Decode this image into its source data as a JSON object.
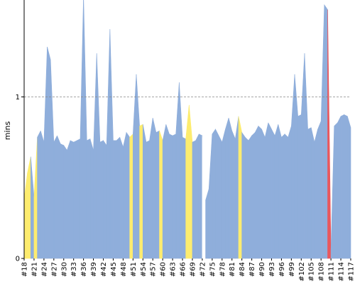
{
  "chart_data": {
    "type": "area",
    "title": "",
    "xlabel": "",
    "ylabel": "mins",
    "ylim": [
      0,
      1.6
    ],
    "y_ticks": [
      0,
      1
    ],
    "reference_line": {
      "y": 1,
      "style": "dashed"
    },
    "grid": false,
    "x_tick_labels": [
      "#18",
      "#21",
      "#24",
      "#27",
      "#30",
      "#33",
      "#36",
      "#39",
      "#42",
      "#45",
      "#48",
      "#51",
      "#54",
      "#57",
      "#60",
      "#63",
      "#66",
      "#69",
      "#72",
      "#75",
      "#78",
      "#81",
      "#84",
      "#87",
      "#90",
      "#93",
      "#96",
      "#99",
      "#102",
      "#105",
      "#108",
      "#111",
      "#114",
      "#117"
    ],
    "x": [
      18,
      19,
      20,
      21,
      22,
      23,
      24,
      25,
      26,
      27,
      28,
      29,
      30,
      31,
      32,
      33,
      34,
      35,
      36,
      37,
      38,
      39,
      40,
      41,
      42,
      43,
      44,
      45,
      46,
      47,
      48,
      49,
      50,
      51,
      52,
      53,
      54,
      55,
      56,
      57,
      58,
      59,
      60,
      61,
      62,
      63,
      64,
      65,
      66,
      67,
      68,
      69,
      70,
      71,
      72,
      73,
      74,
      75,
      76,
      77,
      78,
      79,
      80,
      81,
      82,
      83,
      84,
      85,
      86,
      87,
      88,
      89,
      90,
      91,
      92,
      93,
      94,
      95,
      96,
      97,
      98,
      99,
      100,
      101,
      102,
      103,
      104,
      105,
      106,
      107,
      108,
      109,
      110,
      111,
      112,
      113,
      114,
      115,
      116,
      117
    ],
    "values": [
      0.37,
      0.53,
      0.63,
      0.38,
      0.75,
      0.79,
      0.72,
      1.31,
      1.23,
      0.72,
      0.76,
      0.71,
      0.7,
      0.67,
      0.73,
      0.72,
      0.73,
      0.74,
      1.63,
      0.73,
      0.74,
      0.67,
      1.27,
      0.72,
      0.73,
      0.7,
      1.42,
      0.73,
      0.73,
      0.75,
      0.69,
      0.78,
      0.75,
      0.77,
      1.14,
      0.82,
      0.83,
      0.72,
      0.73,
      0.87,
      0.78,
      0.79,
      0.73,
      0.83,
      0.77,
      0.76,
      0.77,
      1.09,
      0.75,
      0.74,
      0.95,
      0.72,
      0.73,
      0.77,
      0.76,
      0.36,
      0.43,
      0.77,
      0.8,
      0.76,
      0.72,
      0.8,
      0.87,
      0.79,
      0.74,
      0.88,
      0.78,
      0.75,
      0.73,
      0.76,
      0.78,
      0.82,
      0.8,
      0.75,
      0.84,
      0.8,
      0.76,
      0.83,
      0.75,
      0.77,
      0.75,
      0.82,
      1.14,
      0.88,
      0.89,
      1.27,
      0.8,
      0.81,
      0.72,
      0.8,
      0.85,
      1.57,
      1.54,
      0.05,
      0.82,
      0.84,
      0.88,
      0.89,
      0.88,
      0.81
    ],
    "status": [
      "yellow",
      "yellow",
      "yellow",
      "blue",
      "yellow",
      "blue",
      "blue",
      "blue",
      "blue",
      "blue",
      "blue",
      "blue",
      "blue",
      "blue",
      "blue",
      "blue",
      "blue",
      "blue",
      "blue",
      "blue",
      "blue",
      "blue",
      "blue",
      "blue",
      "blue",
      "blue",
      "blue",
      "blue",
      "blue",
      "blue",
      "blue",
      "blue",
      "blue",
      "yellow",
      "blue",
      "blue",
      "yellow",
      "blue",
      "blue",
      "blue",
      "blue",
      "blue",
      "yellow",
      "blue",
      "blue",
      "blue",
      "blue",
      "blue",
      "blue",
      "blue",
      "yellow",
      "yellow",
      "blue",
      "blue",
      "blue",
      "white",
      "blue",
      "blue",
      "blue",
      "blue",
      "blue",
      "blue",
      "blue",
      "blue",
      "blue",
      "blue",
      "yellow",
      "blue",
      "blue",
      "blue",
      "blue",
      "blue",
      "blue",
      "blue",
      "blue",
      "blue",
      "blue",
      "blue",
      "blue",
      "blue",
      "blue",
      "blue",
      "blue",
      "blue",
      "blue",
      "blue",
      "blue",
      "blue",
      "blue",
      "blue",
      "blue",
      "blue",
      "blue",
      "red",
      "blue",
      "blue",
      "blue",
      "blue",
      "blue",
      "blue"
    ],
    "colors": {
      "blue": "#8faedb",
      "yellow": "#fdec6f",
      "red": "#e8585e",
      "axis": "#000000",
      "reference": "#888888"
    }
  }
}
